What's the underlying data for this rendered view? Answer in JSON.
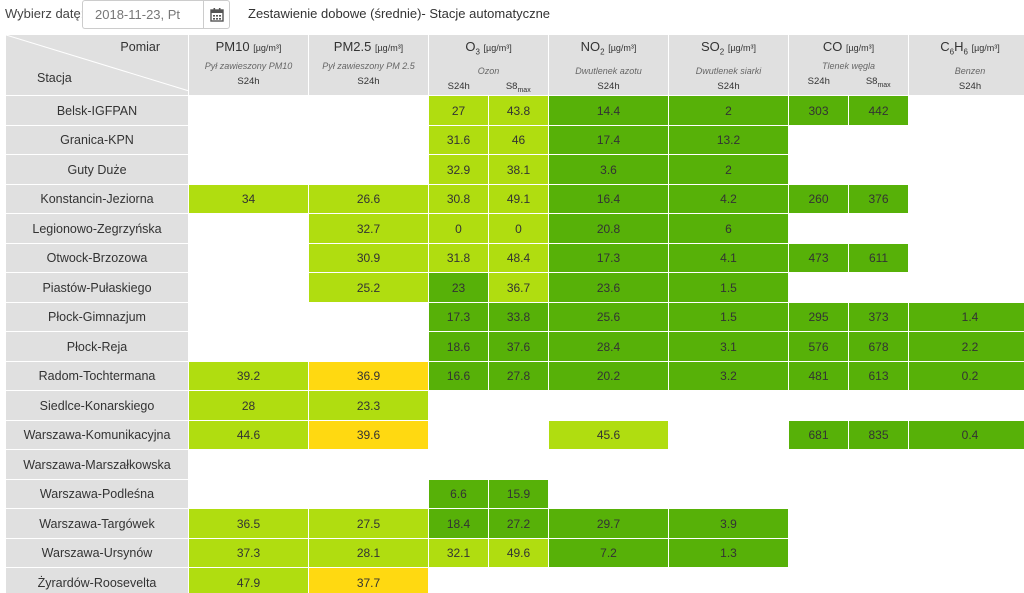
{
  "toolbar": {
    "date_label": "Wybierz datę:",
    "date_value": "2018-11-23, Pt",
    "calendar_icon": "calendar-icon",
    "title": "Zestawienie dobowe (średnie)- Stacje automatyczne"
  },
  "header": {
    "corner_top": "Pomiar",
    "corner_bottom": "Stacja",
    "columns": [
      {
        "key": "pm10",
        "name_main": "PM10",
        "name_sub": "",
        "name_main2": "",
        "unit": "[µg/m³]",
        "desc": "Pył zawieszony PM10",
        "periods": [
          "S24h"
        ]
      },
      {
        "key": "pm25",
        "name_main": "PM2.5",
        "name_sub": "",
        "name_main2": "",
        "unit": "[µg/m³]",
        "desc": "Pył zawieszony PM 2.5",
        "periods": [
          "S24h"
        ]
      },
      {
        "key": "o3",
        "name_main": "O",
        "name_sub": "3",
        "name_main2": "",
        "unit": "[µg/m³]",
        "desc": "Ozon",
        "periods": [
          "S24h",
          "S8max"
        ]
      },
      {
        "key": "no2",
        "name_main": "NO",
        "name_sub": "2",
        "name_main2": "",
        "unit": "[µg/m³]",
        "desc": "Dwutlenek azotu",
        "periods": [
          "S24h"
        ]
      },
      {
        "key": "so2",
        "name_main": "SO",
        "name_sub": "2",
        "name_main2": "",
        "unit": "[µg/m³]",
        "desc": "Dwutlenek siarki",
        "periods": [
          "S24h"
        ]
      },
      {
        "key": "co",
        "name_main": "CO",
        "name_sub": "",
        "name_main2": "",
        "unit": "[µg/m³]",
        "desc": "Tlenek węgla",
        "periods": [
          "S24h",
          "S8max"
        ]
      },
      {
        "key": "c6h6",
        "name_main": "C",
        "name_sub": "6",
        "name_main2": "H",
        "name_sub2": "6",
        "unit": "[µg/m³]",
        "desc": "Benzen",
        "periods": [
          "S24h"
        ]
      }
    ]
  },
  "legend_colors": {
    "very_good": "#57b108",
    "good": "#b0dd10",
    "moderate": "#ffd911",
    "no_data": "#ffffff",
    "station_bg": "#e0e0e0"
  },
  "rows": [
    {
      "station": "Belsk-IGFPAN",
      "cells": [
        {
          "v": "",
          "l": ""
        },
        {
          "v": "",
          "l": ""
        },
        {
          "v": "27",
          "l": "g"
        },
        {
          "v": "43.8",
          "l": "g"
        },
        {
          "v": "14.4",
          "l": "vg"
        },
        {
          "v": "2",
          "l": "vg"
        },
        {
          "v": "303",
          "l": "vg"
        },
        {
          "v": "442",
          "l": "vg"
        },
        {
          "v": "",
          "l": ""
        }
      ]
    },
    {
      "station": "Granica-KPN",
      "cells": [
        {
          "v": "",
          "l": ""
        },
        {
          "v": "",
          "l": ""
        },
        {
          "v": "31.6",
          "l": "g"
        },
        {
          "v": "46",
          "l": "g"
        },
        {
          "v": "17.4",
          "l": "vg"
        },
        {
          "v": "13.2",
          "l": "vg"
        },
        {
          "v": "",
          "l": ""
        },
        {
          "v": "",
          "l": ""
        },
        {
          "v": "",
          "l": ""
        }
      ]
    },
    {
      "station": "Guty Duże",
      "cells": [
        {
          "v": "",
          "l": ""
        },
        {
          "v": "",
          "l": ""
        },
        {
          "v": "32.9",
          "l": "g"
        },
        {
          "v": "38.1",
          "l": "g"
        },
        {
          "v": "3.6",
          "l": "vg"
        },
        {
          "v": "2",
          "l": "vg"
        },
        {
          "v": "",
          "l": ""
        },
        {
          "v": "",
          "l": ""
        },
        {
          "v": "",
          "l": ""
        }
      ]
    },
    {
      "station": "Konstancin-Jeziorna",
      "cells": [
        {
          "v": "34",
          "l": "g"
        },
        {
          "v": "26.6",
          "l": "g"
        },
        {
          "v": "30.8",
          "l": "g"
        },
        {
          "v": "49.1",
          "l": "g"
        },
        {
          "v": "16.4",
          "l": "vg"
        },
        {
          "v": "4.2",
          "l": "vg"
        },
        {
          "v": "260",
          "l": "vg"
        },
        {
          "v": "376",
          "l": "vg"
        },
        {
          "v": "",
          "l": ""
        }
      ]
    },
    {
      "station": "Legionowo-Zegrzyńska",
      "cells": [
        {
          "v": "",
          "l": ""
        },
        {
          "v": "32.7",
          "l": "g"
        },
        {
          "v": "0",
          "l": "g"
        },
        {
          "v": "0",
          "l": "g"
        },
        {
          "v": "20.8",
          "l": "vg"
        },
        {
          "v": "6",
          "l": "vg"
        },
        {
          "v": "",
          "l": ""
        },
        {
          "v": "",
          "l": ""
        },
        {
          "v": "",
          "l": ""
        }
      ]
    },
    {
      "station": "Otwock-Brzozowa",
      "cells": [
        {
          "v": "",
          "l": ""
        },
        {
          "v": "30.9",
          "l": "g"
        },
        {
          "v": "31.8",
          "l": "g"
        },
        {
          "v": "48.4",
          "l": "g"
        },
        {
          "v": "17.3",
          "l": "vg"
        },
        {
          "v": "4.1",
          "l": "vg"
        },
        {
          "v": "473",
          "l": "vg"
        },
        {
          "v": "611",
          "l": "vg"
        },
        {
          "v": "",
          "l": ""
        }
      ]
    },
    {
      "station": "Piastów-Pułaskiego",
      "cells": [
        {
          "v": "",
          "l": ""
        },
        {
          "v": "25.2",
          "l": "g"
        },
        {
          "v": "23",
          "l": "vg"
        },
        {
          "v": "36.7",
          "l": "g"
        },
        {
          "v": "23.6",
          "l": "vg"
        },
        {
          "v": "1.5",
          "l": "vg"
        },
        {
          "v": "",
          "l": ""
        },
        {
          "v": "",
          "l": ""
        },
        {
          "v": "",
          "l": ""
        }
      ]
    },
    {
      "station": "Płock-Gimnazjum",
      "cells": [
        {
          "v": "",
          "l": ""
        },
        {
          "v": "",
          "l": ""
        },
        {
          "v": "17.3",
          "l": "vg"
        },
        {
          "v": "33.8",
          "l": "vg"
        },
        {
          "v": "25.6",
          "l": "vg"
        },
        {
          "v": "1.5",
          "l": "vg"
        },
        {
          "v": "295",
          "l": "vg"
        },
        {
          "v": "373",
          "l": "vg"
        },
        {
          "v": "1.4",
          "l": "vg"
        }
      ]
    },
    {
      "station": "Płock-Reja",
      "cells": [
        {
          "v": "",
          "l": ""
        },
        {
          "v": "",
          "l": ""
        },
        {
          "v": "18.6",
          "l": "vg"
        },
        {
          "v": "37.6",
          "l": "vg"
        },
        {
          "v": "28.4",
          "l": "vg"
        },
        {
          "v": "3.1",
          "l": "vg"
        },
        {
          "v": "576",
          "l": "vg"
        },
        {
          "v": "678",
          "l": "vg"
        },
        {
          "v": "2.2",
          "l": "vg"
        }
      ]
    },
    {
      "station": "Radom-Tochtermana",
      "cells": [
        {
          "v": "39.2",
          "l": "g"
        },
        {
          "v": "36.9",
          "l": "m"
        },
        {
          "v": "16.6",
          "l": "vg"
        },
        {
          "v": "27.8",
          "l": "vg"
        },
        {
          "v": "20.2",
          "l": "vg"
        },
        {
          "v": "3.2",
          "l": "vg"
        },
        {
          "v": "481",
          "l": "vg"
        },
        {
          "v": "613",
          "l": "vg"
        },
        {
          "v": "0.2",
          "l": "vg"
        }
      ]
    },
    {
      "station": "Siedlce-Konarskiego",
      "cells": [
        {
          "v": "28",
          "l": "g"
        },
        {
          "v": "23.3",
          "l": "g"
        },
        {
          "v": "",
          "l": ""
        },
        {
          "v": "",
          "l": ""
        },
        {
          "v": "",
          "l": ""
        },
        {
          "v": "",
          "l": ""
        },
        {
          "v": "",
          "l": ""
        },
        {
          "v": "",
          "l": ""
        },
        {
          "v": "",
          "l": ""
        }
      ]
    },
    {
      "station": "Warszawa-Komunikacyjna",
      "cells": [
        {
          "v": "44.6",
          "l": "g"
        },
        {
          "v": "39.6",
          "l": "m"
        },
        {
          "v": "",
          "l": ""
        },
        {
          "v": "",
          "l": ""
        },
        {
          "v": "45.6",
          "l": "g"
        },
        {
          "v": "",
          "l": ""
        },
        {
          "v": "681",
          "l": "vg"
        },
        {
          "v": "835",
          "l": "vg"
        },
        {
          "v": "0.4",
          "l": "vg"
        }
      ]
    },
    {
      "station": "Warszawa-Marszałkowska",
      "cells": [
        {
          "v": "",
          "l": ""
        },
        {
          "v": "",
          "l": ""
        },
        {
          "v": "",
          "l": ""
        },
        {
          "v": "",
          "l": ""
        },
        {
          "v": "",
          "l": ""
        },
        {
          "v": "",
          "l": ""
        },
        {
          "v": "",
          "l": ""
        },
        {
          "v": "",
          "l": ""
        },
        {
          "v": "",
          "l": ""
        }
      ]
    },
    {
      "station": "Warszawa-Podleśna",
      "cells": [
        {
          "v": "",
          "l": ""
        },
        {
          "v": "",
          "l": ""
        },
        {
          "v": "6.6",
          "l": "vg"
        },
        {
          "v": "15.9",
          "l": "vg"
        },
        {
          "v": "",
          "l": ""
        },
        {
          "v": "",
          "l": ""
        },
        {
          "v": "",
          "l": ""
        },
        {
          "v": "",
          "l": ""
        },
        {
          "v": "",
          "l": ""
        }
      ]
    },
    {
      "station": "Warszawa-Targówek",
      "cells": [
        {
          "v": "36.5",
          "l": "g"
        },
        {
          "v": "27.5",
          "l": "g"
        },
        {
          "v": "18.4",
          "l": "vg"
        },
        {
          "v": "27.2",
          "l": "vg"
        },
        {
          "v": "29.7",
          "l": "vg"
        },
        {
          "v": "3.9",
          "l": "vg"
        },
        {
          "v": "",
          "l": ""
        },
        {
          "v": "",
          "l": ""
        },
        {
          "v": "",
          "l": ""
        }
      ]
    },
    {
      "station": "Warszawa-Ursynów",
      "cells": [
        {
          "v": "37.3",
          "l": "g"
        },
        {
          "v": "28.1",
          "l": "g"
        },
        {
          "v": "32.1",
          "l": "g"
        },
        {
          "v": "49.6",
          "l": "g"
        },
        {
          "v": "7.2",
          "l": "vg"
        },
        {
          "v": "1.3",
          "l": "vg"
        },
        {
          "v": "",
          "l": ""
        },
        {
          "v": "",
          "l": ""
        },
        {
          "v": "",
          "l": ""
        }
      ]
    },
    {
      "station": "Żyrardów-Roosevelta",
      "cells": [
        {
          "v": "47.9",
          "l": "g"
        },
        {
          "v": "37.7",
          "l": "m"
        },
        {
          "v": "",
          "l": ""
        },
        {
          "v": "",
          "l": ""
        },
        {
          "v": "",
          "l": ""
        },
        {
          "v": "",
          "l": ""
        },
        {
          "v": "",
          "l": ""
        },
        {
          "v": "",
          "l": ""
        },
        {
          "v": "",
          "l": ""
        }
      ]
    }
  ]
}
